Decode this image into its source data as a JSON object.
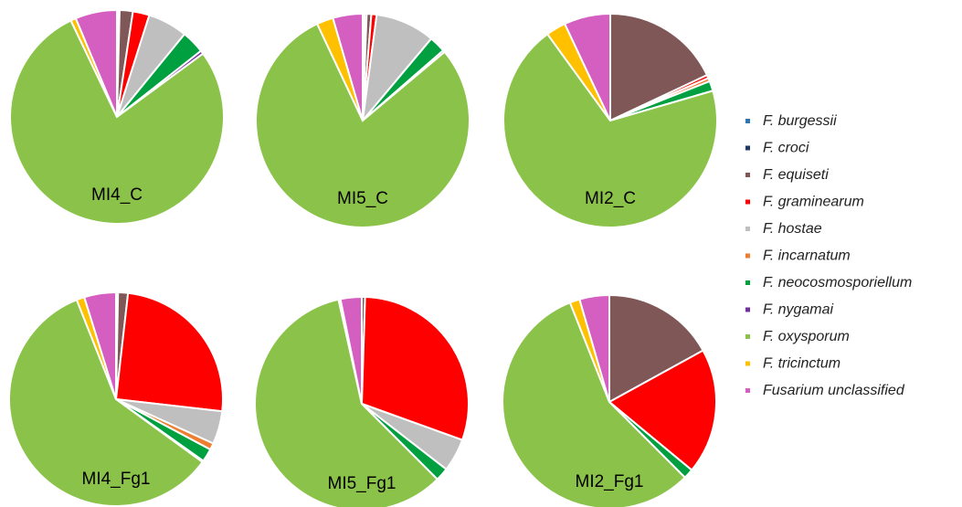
{
  "chart_data": {
    "type": "pie",
    "categories": [
      "F. burgessii",
      "F. croci",
      "F. equiseti",
      "F. graminearum",
      "F. hostae",
      "F. incarnatum",
      "F. neocosmosporiellum",
      "F. nygamai",
      "F. oxysporum",
      "F. tricinctum",
      "Fusarium unclassified"
    ],
    "colors": [
      "#2e75b6",
      "#1f3864",
      "#7f5757",
      "#ff0000",
      "#bfbfbf",
      "#ed7d31",
      "#00a040",
      "#7030a0",
      "#8bc34a",
      "#ffc000",
      "#d45fc0"
    ],
    "pies": [
      {
        "label": "MI4_C",
        "values": [
          0.2,
          0.2,
          2,
          2.5,
          6,
          0,
          3.5,
          0.5,
          78,
          0.8,
          6.3
        ]
      },
      {
        "label": "MI5_C",
        "values": [
          0.3,
          0.3,
          0.7,
          0.8,
          9,
          0,
          2.5,
          0.3,
          79.1,
          2.5,
          4.5
        ]
      },
      {
        "label": "MI2_C",
        "values": [
          0,
          0,
          18,
          0.5,
          0,
          0.5,
          1.5,
          0,
          69.5,
          3,
          7
        ]
      },
      {
        "label": "MI4_Fg1",
        "values": [
          0,
          0.3,
          1.5,
          25,
          5,
          1,
          2,
          0.2,
          59,
          1.2,
          4.8
        ]
      },
      {
        "label": "MI5_Fg1",
        "values": [
          0,
          0,
          0.5,
          30,
          5,
          0,
          2,
          0,
          59,
          0.3,
          3.2
        ]
      },
      {
        "label": "MI2_Fg1",
        "values": [
          0,
          0,
          17,
          19,
          0,
          0,
          1.5,
          0,
          56.5,
          1.5,
          4.5
        ]
      }
    ]
  }
}
